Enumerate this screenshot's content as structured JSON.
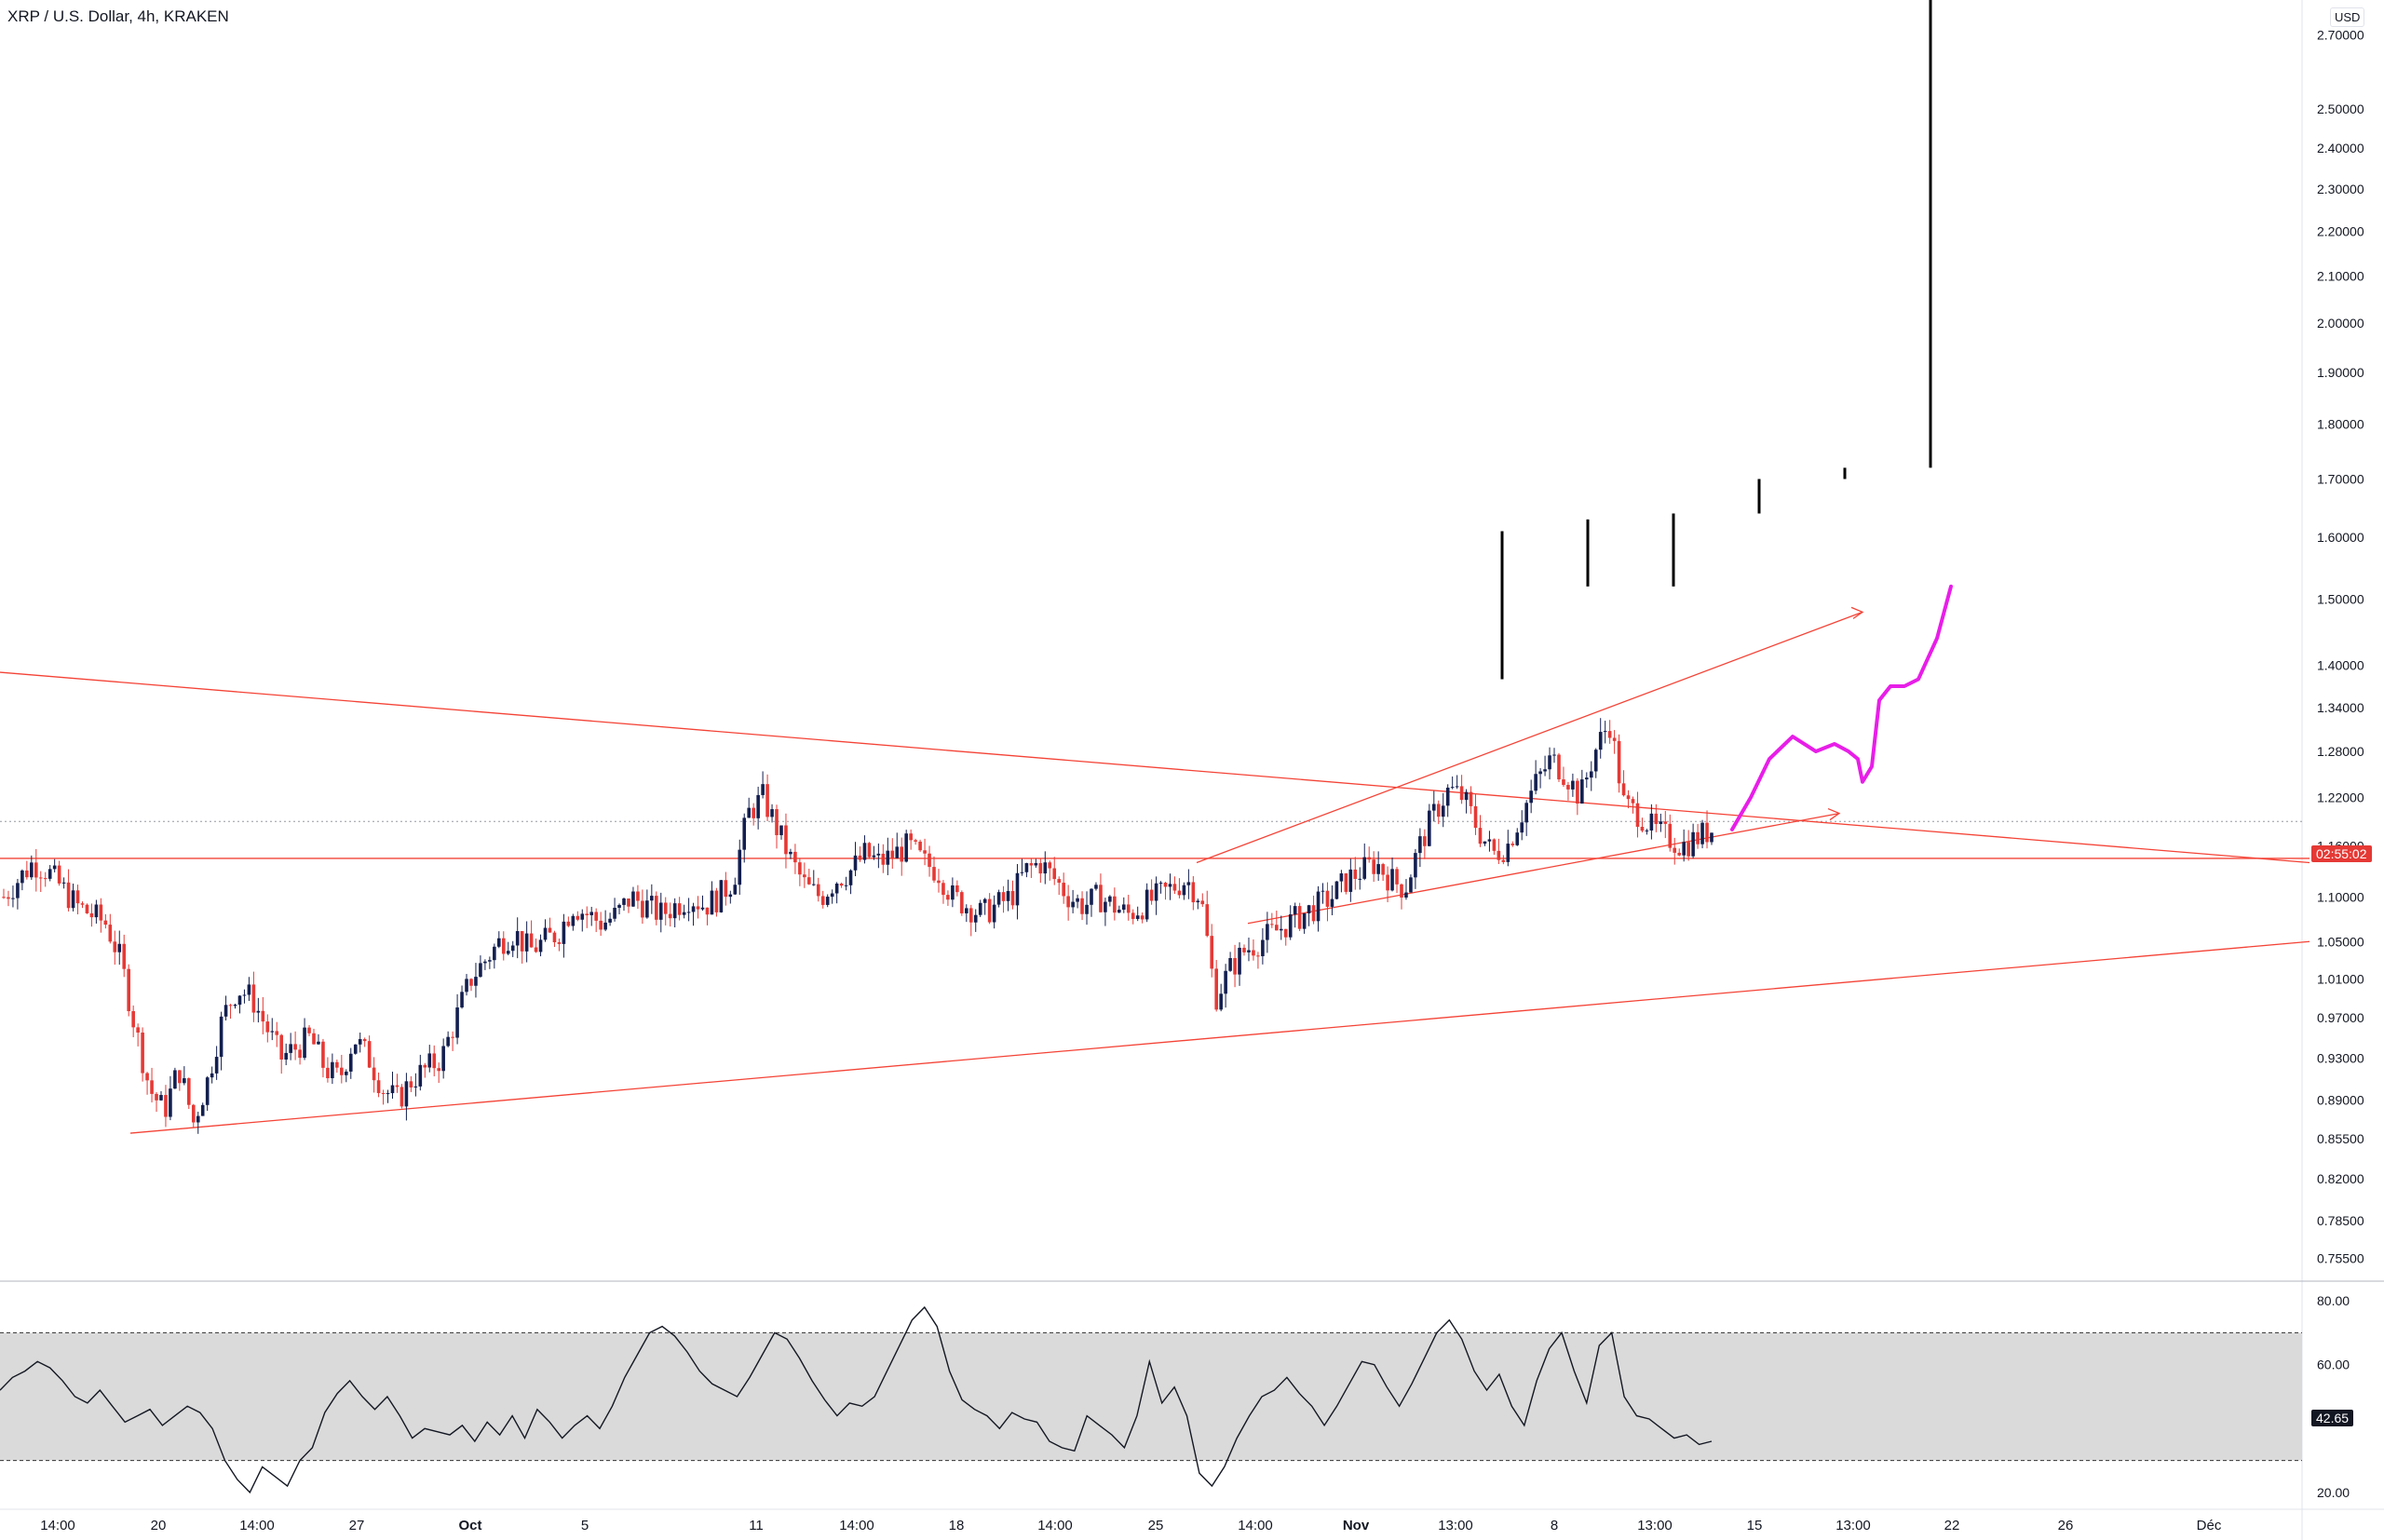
{
  "header": {
    "title": "XRP / U.S. Dollar, 4h, KRAKEN"
  },
  "currency": "USD",
  "countdown": "02:55:02",
  "rsi_value": "42.65",
  "colors": {
    "up": "#131f4f",
    "down": "#e53935",
    "trend": "#f44336",
    "projection": "#e81ee8",
    "rsi": "#131722",
    "rsi_band": "#d6d6d6"
  },
  "chart_data": [
    {
      "type": "candlestick",
      "title": "XRP / U.S. Dollar, 4h, KRAKEN",
      "y_scale": "log",
      "ylim": [
        0.74,
        2.8
      ],
      "y_ticks": [
        "2.70000",
        "2.50000",
        "2.40000",
        "2.30000",
        "2.20000",
        "2.10000",
        "2.00000",
        "1.90000",
        "1.80000",
        "1.70000",
        "1.60000",
        "1.50000",
        "1.40000",
        "1.34000",
        "1.28000",
        "1.22000",
        "1.16000",
        "1.10000",
        "1.05000",
        "1.01000",
        "0.97000",
        "0.93000",
        "0.89000",
        "0.85500",
        "0.82000",
        "0.78500",
        "0.75500"
      ],
      "y_tick_values": [
        2.7,
        2.5,
        2.4,
        2.3,
        2.2,
        2.1,
        2.0,
        1.9,
        1.8,
        1.7,
        1.6,
        1.5,
        1.4,
        1.34,
        1.28,
        1.22,
        1.16,
        1.1,
        1.05,
        1.01,
        0.97,
        0.93,
        0.89,
        0.855,
        0.82,
        0.785,
        0.755
      ],
      "x_ticks": [
        "14:00",
        "20",
        "14:00",
        "27",
        "Oct",
        "5",
        "11",
        "14:00",
        "18",
        "14:00",
        "25",
        "14:00",
        "Nov",
        "13:00",
        "8",
        "13:00",
        "15",
        "13:00",
        "22",
        "26",
        "Déc"
      ],
      "last_price": 1.19,
      "close_path": [
        1.1,
        1.12,
        1.14,
        1.13,
        1.11,
        1.09,
        1.08,
        1.07,
        1.03,
        0.96,
        0.9,
        0.88,
        0.92,
        0.87,
        0.91,
        0.97,
        1.0,
        0.99,
        0.96,
        0.93,
        0.94,
        0.95,
        0.92,
        0.91,
        0.95,
        0.93,
        0.9,
        0.89,
        0.91,
        0.92,
        0.93,
        0.97,
        1.01,
        1.03,
        1.05,
        1.06,
        1.04,
        1.05,
        1.06,
        1.09,
        1.08,
        1.07,
        1.08,
        1.1,
        1.09,
        1.08,
        1.09,
        1.1,
        1.09,
        1.1,
        1.12,
        1.2,
        1.22,
        1.18,
        1.14,
        1.11,
        1.1,
        1.12,
        1.13,
        1.15,
        1.14,
        1.15,
        1.16,
        1.14,
        1.13,
        1.1,
        1.09,
        1.08,
        1.09,
        1.1,
        1.13,
        1.14,
        1.12,
        1.1,
        1.09,
        1.1,
        1.09,
        1.08,
        1.09,
        1.1,
        1.11,
        1.12,
        1.1,
        0.99,
        1.02,
        1.04,
        1.05,
        1.06,
        1.07,
        1.08,
        1.09,
        1.1,
        1.12,
        1.13,
        1.14,
        1.12,
        1.11,
        1.16,
        1.2,
        1.23,
        1.22,
        1.18,
        1.15,
        1.16,
        1.2,
        1.24,
        1.27,
        1.25,
        1.22,
        1.28,
        1.32,
        1.21,
        1.2,
        1.18,
        1.17,
        1.16,
        1.17,
        1.18
      ],
      "trend_lines": [
        {
          "from": [
            0,
            1.39
          ],
          "to": [
            2480,
            1.14
          ],
          "label": ""
        },
        {
          "from": [
            0,
            1.145
          ],
          "to": [
            2480,
            1.145
          ],
          "label": ""
        },
        {
          "from": [
            140,
            0.86
          ],
          "to": [
            2480,
            1.05
          ],
          "label": ""
        },
        {
          "from": [
            1285,
            1.14
          ],
          "to": [
            2000,
            1.48
          ],
          "label": ""
        },
        {
          "from": [
            1340,
            1.07
          ],
          "to": [
            1975,
            1.2
          ],
          "label": ""
        }
      ],
      "projection_path": [
        [
          1860,
          1.18
        ],
        [
          1880,
          1.22
        ],
        [
          1900,
          1.27
        ],
        [
          1925,
          1.3
        ],
        [
          1950,
          1.28
        ],
        [
          1970,
          1.29
        ],
        [
          1985,
          1.28
        ],
        [
          1995,
          1.27
        ],
        [
          2000,
          1.24
        ],
        [
          2010,
          1.26
        ],
        [
          2018,
          1.35
        ],
        [
          2030,
          1.37
        ],
        [
          2045,
          1.37
        ],
        [
          2060,
          1.38
        ],
        [
          2080,
          1.44
        ],
        [
          2095,
          1.52
        ]
      ],
      "target_bars": [
        {
          "x": 1613,
          "low": 1.38,
          "high": 1.61
        },
        {
          "x": 1705,
          "low": 1.52,
          "high": 1.63
        },
        {
          "x": 1797,
          "low": 1.52,
          "high": 1.64
        },
        {
          "x": 1889,
          "low": 1.64,
          "high": 1.7
        },
        {
          "x": 1981,
          "low": 1.7,
          "high": 1.72
        },
        {
          "x": 2073,
          "low": 1.72,
          "high": 2.8
        }
      ]
    },
    {
      "type": "line",
      "title": "RSI",
      "ylim": [
        15,
        85
      ],
      "y_ticks": [
        "80.00",
        "60.00",
        "20.00"
      ],
      "y_tick_values": [
        80,
        60,
        20
      ],
      "band": [
        30,
        70
      ],
      "values": [
        52,
        56,
        58,
        61,
        59,
        55,
        50,
        48,
        52,
        47,
        42,
        44,
        46,
        41,
        44,
        47,
        45,
        40,
        30,
        24,
        20,
        28,
        25,
        22,
        30,
        34,
        45,
        51,
        55,
        50,
        46,
        50,
        44,
        37,
        40,
        39,
        38,
        41,
        36,
        42,
        38,
        44,
        37,
        46,
        42,
        37,
        41,
        44,
        40,
        47,
        56,
        63,
        70,
        72,
        69,
        64,
        58,
        54,
        52,
        50,
        56,
        63,
        70,
        68,
        62,
        55,
        49,
        44,
        48,
        47,
        50,
        58,
        66,
        74,
        78,
        72,
        58,
        49,
        46,
        44,
        40,
        45,
        43,
        42,
        36,
        34,
        33,
        44,
        41,
        38,
        34,
        44,
        61,
        48,
        53,
        44,
        26,
        22,
        28,
        37,
        44,
        50,
        52,
        56,
        51,
        47,
        41,
        47,
        54,
        61,
        60,
        53,
        47,
        54,
        62,
        70,
        74,
        68,
        58,
        52,
        57,
        47,
        41,
        55,
        65,
        70,
        58,
        48,
        66,
        70,
        50,
        44,
        43,
        40,
        37,
        38,
        35,
        36
      ]
    }
  ]
}
